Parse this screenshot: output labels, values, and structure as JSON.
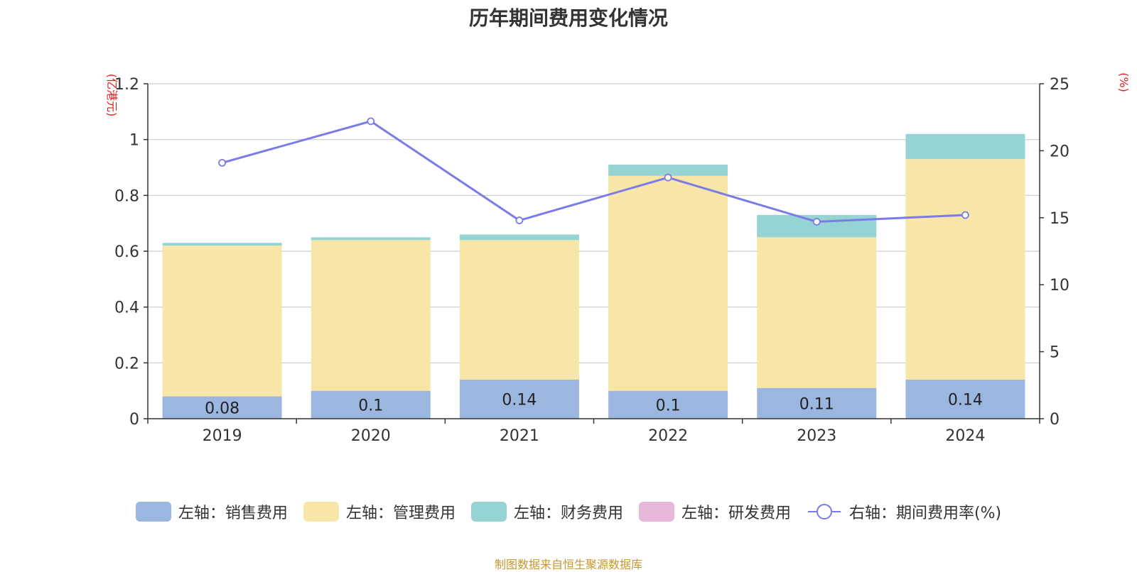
{
  "chart_data": {
    "type": "bar",
    "title": "历年期间费用变化情况",
    "categories": [
      "2019",
      "2020",
      "2021",
      "2022",
      "2023",
      "2024"
    ],
    "left_axis": {
      "unit_label": "(亿港元)",
      "ylim": [
        0,
        1.2
      ],
      "ticks": [
        "0",
        "0.2",
        "0.4",
        "0.6",
        "0.8",
        "1",
        "1.2"
      ],
      "tick_values": [
        0,
        0.2,
        0.4,
        0.6,
        0.8,
        1.0,
        1.2
      ]
    },
    "right_axis": {
      "unit_label": "(%)",
      "ylim": [
        0,
        25
      ],
      "ticks": [
        "0",
        "5",
        "10",
        "15",
        "20",
        "25"
      ],
      "tick_values": [
        0,
        5,
        10,
        15,
        20,
        25
      ]
    },
    "series": [
      {
        "name": "左轴：销售费用",
        "type": "bar",
        "stack": true,
        "color": "#9bb7e0",
        "values": [
          0.08,
          0.1,
          0.14,
          0.1,
          0.11,
          0.14
        ],
        "labels": [
          "0.08",
          "0.1",
          "0.14",
          "0.1",
          "0.11",
          "0.14"
        ]
      },
      {
        "name": "左轴：管理费用",
        "type": "bar",
        "stack": true,
        "color": "#f7e6a8",
        "values": [
          0.54,
          0.54,
          0.5,
          0.77,
          0.54,
          0.79
        ]
      },
      {
        "name": "左轴：财务费用",
        "type": "bar",
        "stack": true,
        "color": "#96d3d3",
        "values": [
          0.01,
          0.01,
          0.02,
          0.04,
          0.08,
          0.09
        ]
      },
      {
        "name": "左轴：研发费用",
        "type": "bar",
        "stack": true,
        "color": "#e8b8da",
        "values": [
          0,
          0,
          0,
          0,
          0,
          0
        ]
      },
      {
        "name": "右轴：期间费用率(%)",
        "type": "line",
        "axis": "right",
        "color": "#7b7be8",
        "values": [
          19.1,
          22.2,
          14.8,
          18.0,
          14.7,
          15.2
        ]
      }
    ],
    "grid": true,
    "legend_position": "bottom"
  },
  "source_note": "制图数据来自恒生聚源数据库",
  "colors": {
    "axis_unit": "#e02020",
    "source": "#c9952f",
    "grid": "#cccccc"
  }
}
